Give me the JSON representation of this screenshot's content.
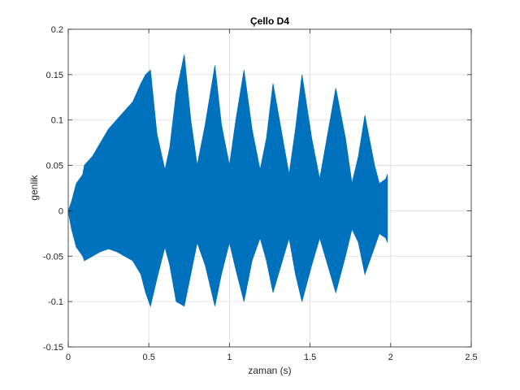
{
  "chart_data": {
    "type": "line",
    "title": "Çello D4",
    "xlabel": "zaman (s)",
    "ylabel": "genlik",
    "xlim": [
      0,
      2.5
    ],
    "ylim": [
      -0.15,
      0.2
    ],
    "xticks": [
      0,
      0.5,
      1,
      1.5,
      2,
      2.5
    ],
    "xtick_labels": [
      "0",
      "0.5",
      "1",
      "1.5",
      "2",
      "2.5"
    ],
    "yticks": [
      -0.15,
      -0.1,
      -0.05,
      0,
      0.05,
      0.1,
      0.15,
      0.2
    ],
    "ytick_labels": [
      "-0.15",
      "-0.1",
      "-0.05",
      "0",
      "0.05",
      "0.1",
      "0.15",
      "0.2"
    ],
    "grid": true,
    "color": "#0072BD",
    "series": [
      {
        "envelope": {
          "time": [
            0,
            0.02,
            0.05,
            0.09,
            0.1,
            0.15,
            0.2,
            0.25,
            0.3,
            0.35,
            0.4,
            0.45,
            0.48,
            0.51,
            0.55,
            0.6,
            0.63,
            0.67,
            0.72,
            0.76,
            0.8,
            0.85,
            0.91,
            0.95,
            1.0,
            1.04,
            1.09,
            1.14,
            1.19,
            1.23,
            1.27,
            1.32,
            1.37,
            1.41,
            1.45,
            1.51,
            1.56,
            1.61,
            1.66,
            1.72,
            1.76,
            1.8,
            1.84,
            1.9,
            1.93,
            1.97,
            1.98
          ],
          "upper": [
            0,
            0.01,
            0.03,
            0.04,
            0.05,
            0.06,
            0.075,
            0.09,
            0.1,
            0.11,
            0.12,
            0.14,
            0.15,
            0.155,
            0.085,
            0.045,
            0.07,
            0.13,
            0.172,
            0.1,
            0.05,
            0.095,
            0.16,
            0.095,
            0.05,
            0.1,
            0.155,
            0.09,
            0.045,
            0.08,
            0.14,
            0.09,
            0.04,
            0.09,
            0.15,
            0.08,
            0.035,
            0.085,
            0.135,
            0.08,
            0.03,
            0.06,
            0.105,
            0.05,
            0.03,
            0.035,
            0.04
          ],
          "lower": [
            0,
            -0.02,
            -0.04,
            -0.05,
            -0.055,
            -0.05,
            -0.045,
            -0.042,
            -0.045,
            -0.05,
            -0.055,
            -0.07,
            -0.09,
            -0.105,
            -0.075,
            -0.04,
            -0.06,
            -0.1,
            -0.105,
            -0.07,
            -0.035,
            -0.06,
            -0.105,
            -0.07,
            -0.035,
            -0.065,
            -0.1,
            -0.055,
            -0.03,
            -0.055,
            -0.09,
            -0.06,
            -0.03,
            -0.07,
            -0.1,
            -0.06,
            -0.03,
            -0.06,
            -0.09,
            -0.05,
            -0.02,
            -0.035,
            -0.07,
            -0.04,
            -0.025,
            -0.03,
            -0.035
          ]
        }
      }
    ]
  }
}
